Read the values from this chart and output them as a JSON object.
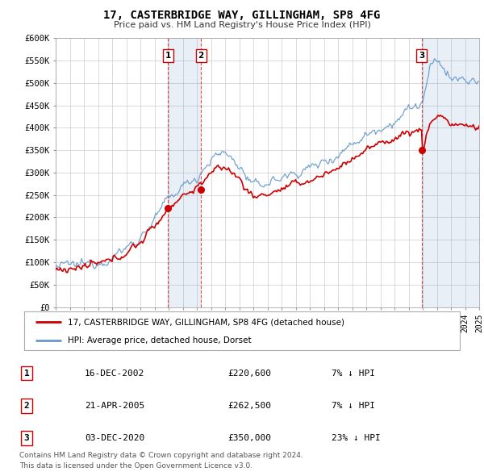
{
  "title": "17, CASTERBRIDGE WAY, GILLINGHAM, SP8 4FG",
  "subtitle": "Price paid vs. HM Land Registry's House Price Index (HPI)",
  "x_start_year": 1995,
  "x_end_year": 2025,
  "y_min": 0,
  "y_max": 600000,
  "y_ticks": [
    0,
    50000,
    100000,
    150000,
    200000,
    250000,
    300000,
    350000,
    400000,
    450000,
    500000,
    550000,
    600000
  ],
  "property_color": "#cc0000",
  "hpi_color": "#6699cc",
  "hpi_fill_color": "#ddeeff",
  "sale_markers": [
    {
      "date_decimal": 2002.96,
      "price": 220600,
      "label": "1"
    },
    {
      "date_decimal": 2005.3,
      "price": 262500,
      "label": "2"
    },
    {
      "date_decimal": 2020.92,
      "price": 350000,
      "label": "3"
    }
  ],
  "vline_color": "#cc0000",
  "legend_items": [
    {
      "label": "17, CASTERBRIDGE WAY, GILLINGHAM, SP8 4FG (detached house)",
      "color": "#cc0000"
    },
    {
      "label": "HPI: Average price, detached house, Dorset",
      "color": "#6699cc"
    }
  ],
  "table_rows": [
    {
      "num": "1",
      "date": "16-DEC-2002",
      "price": "£220,600",
      "pct": "7% ↓ HPI"
    },
    {
      "num": "2",
      "date": "21-APR-2005",
      "price": "£262,500",
      "pct": "7% ↓ HPI"
    },
    {
      "num": "3",
      "date": "03-DEC-2020",
      "price": "£350,000",
      "pct": "23% ↓ HPI"
    }
  ],
  "footer": [
    "Contains HM Land Registry data © Crown copyright and database right 2024.",
    "This data is licensed under the Open Government Licence v3.0."
  ],
  "bg_color": "#ffffff",
  "plot_bg_color": "#ffffff",
  "grid_color": "#cccccc"
}
